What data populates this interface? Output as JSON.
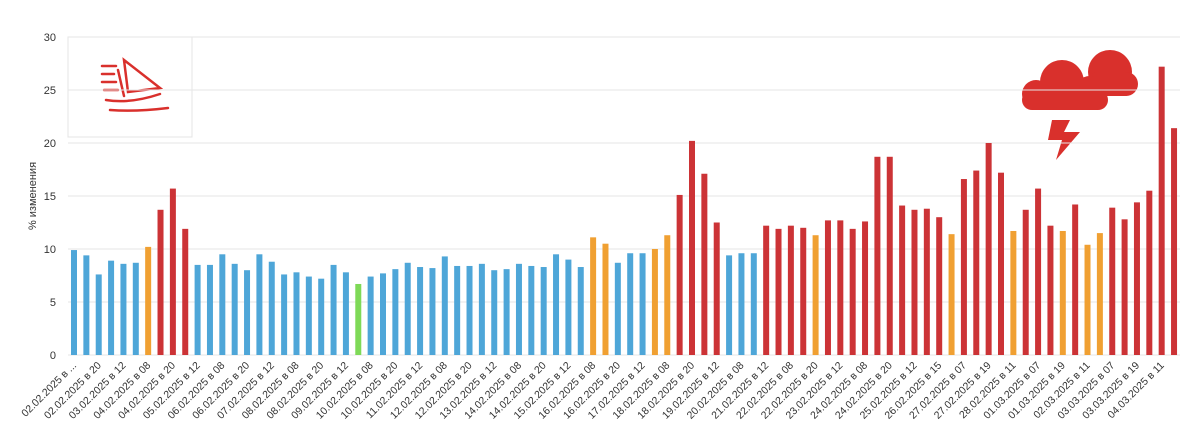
{
  "chart_data": {
    "type": "bar",
    "y_label": "% изменения",
    "categories": [
      "02.02.2025 в ...",
      null,
      "02.02.2025 в 20",
      null,
      "03.02.2025 в 12",
      null,
      "04.02.2025 в 08",
      null,
      "04.02.2025 в 20",
      null,
      "05.02.2025 в 12",
      null,
      "06.02.2025 в 08",
      null,
      "06.02.2025 в 20",
      null,
      "07.02.2025 в 12",
      null,
      "08.02.2025 в 08",
      null,
      "08.02.2025 в 20",
      null,
      "09.02.2025 в 12",
      null,
      "10.02.2025 в 08",
      null,
      "10.02.2025 в 20",
      null,
      "11.02.2025 в 12",
      null,
      "12.02.2025 в 08",
      null,
      "12.02.2025 в 20",
      null,
      "13.02.2025 в 12",
      null,
      "14.02.2025 в 08",
      null,
      "14.02.2025 в 20",
      null,
      "15.02.2025 в 12",
      null,
      "16.02.2025 в 08",
      null,
      "16.02.2025 в 20",
      null,
      "17.02.2025 в 12",
      null,
      "18.02.2025 в 08",
      null,
      "18.02.2025 в 20",
      null,
      "19.02.2025 в 12",
      null,
      "20.02.2025 в 08",
      null,
      "21.02.2025 в 12",
      null,
      "22.02.2025 в 08",
      null,
      "22.02.2025 в 20",
      null,
      "23.02.2025 в 12",
      null,
      "24.02.2025 в 08",
      null,
      "24.02.2025 в 20",
      null,
      "25.02.2025 в 12",
      null,
      "26.02.2025 в 15",
      null,
      "27.02.2025 в 07",
      null,
      "27.02.2025 в 19",
      null,
      "28.02.2025 в 11",
      null,
      "01.03.2025 в 07",
      null,
      "01.03.2025 в 19",
      null,
      "02.03.2025 в 11",
      null,
      "03.03.2025 в 07",
      null,
      "03.03.2025 в 19",
      null,
      "04.03.2025 в 11",
      null
    ],
    "values": [
      9.9,
      9.4,
      7.6,
      8.9,
      8.6,
      8.7,
      10.2,
      13.7,
      15.7,
      11.9,
      8.5,
      8.5,
      9.5,
      8.6,
      8.0,
      9.5,
      8.8,
      7.6,
      7.8,
      7.4,
      7.2,
      8.5,
      7.8,
      6.7,
      7.4,
      7.7,
      8.1,
      8.7,
      8.3,
      8.2,
      9.3,
      8.4,
      8.4,
      8.6,
      8.0,
      8.1,
      8.6,
      8.4,
      8.3,
      9.5,
      9.0,
      8.3,
      11.1,
      10.5,
      8.7,
      9.6,
      9.6,
      10.0,
      11.3,
      15.1,
      20.2,
      17.1,
      12.5,
      9.4,
      9.6,
      9.6,
      12.2,
      11.9,
      12.2,
      12.0,
      11.3,
      12.7,
      12.7,
      11.9,
      12.6,
      18.7,
      18.7,
      14.1,
      13.7,
      13.8,
      13.0,
      11.4,
      16.6,
      17.4,
      20.0,
      17.2,
      11.7,
      13.7,
      15.7,
      12.2,
      11.7,
      14.2,
      10.4,
      11.5,
      13.9,
      12.8,
      14.4,
      15.5,
      27.2,
      21.4
    ],
    "colors": [
      "#4ea6d8",
      "#4ea6d8",
      "#4ea6d8",
      "#4ea6d8",
      "#4ea6d8",
      "#4ea6d8",
      "#f0a032",
      "#cc3336",
      "#cc3336",
      "#cc3336",
      "#4ea6d8",
      "#4ea6d8",
      "#4ea6d8",
      "#4ea6d8",
      "#4ea6d8",
      "#4ea6d8",
      "#4ea6d8",
      "#4ea6d8",
      "#4ea6d8",
      "#4ea6d8",
      "#4ea6d8",
      "#4ea6d8",
      "#4ea6d8",
      "#7ed957",
      "#4ea6d8",
      "#4ea6d8",
      "#4ea6d8",
      "#4ea6d8",
      "#4ea6d8",
      "#4ea6d8",
      "#4ea6d8",
      "#4ea6d8",
      "#4ea6d8",
      "#4ea6d8",
      "#4ea6d8",
      "#4ea6d8",
      "#4ea6d8",
      "#4ea6d8",
      "#4ea6d8",
      "#4ea6d8",
      "#4ea6d8",
      "#4ea6d8",
      "#f0a032",
      "#f0a032",
      "#4ea6d8",
      "#4ea6d8",
      "#4ea6d8",
      "#f0a032",
      "#f0a032",
      "#cc3336",
      "#cc3336",
      "#cc3336",
      "#cc3336",
      "#4ea6d8",
      "#4ea6d8",
      "#4ea6d8",
      "#cc3336",
      "#cc3336",
      "#cc3336",
      "#cc3336",
      "#f0a032",
      "#cc3336",
      "#cc3336",
      "#cc3336",
      "#cc3336",
      "#cc3336",
      "#cc3336",
      "#cc3336",
      "#cc3336",
      "#cc3336",
      "#cc3336",
      "#f0a032",
      "#cc3336",
      "#cc3336",
      "#cc3336",
      "#cc3336",
      "#f0a032",
      "#cc3336",
      "#cc3336",
      "#cc3336",
      "#f0a032",
      "#cc3336",
      "#f0a032",
      "#f0a032",
      "#cc3336",
      "#cc3336",
      "#cc3336",
      "#cc3336",
      "#cc3336",
      "#cc3336"
    ],
    "ylim": [
      0,
      30
    ],
    "yticks": [
      0,
      5,
      10,
      15,
      20,
      25,
      30
    ],
    "grid": true
  }
}
